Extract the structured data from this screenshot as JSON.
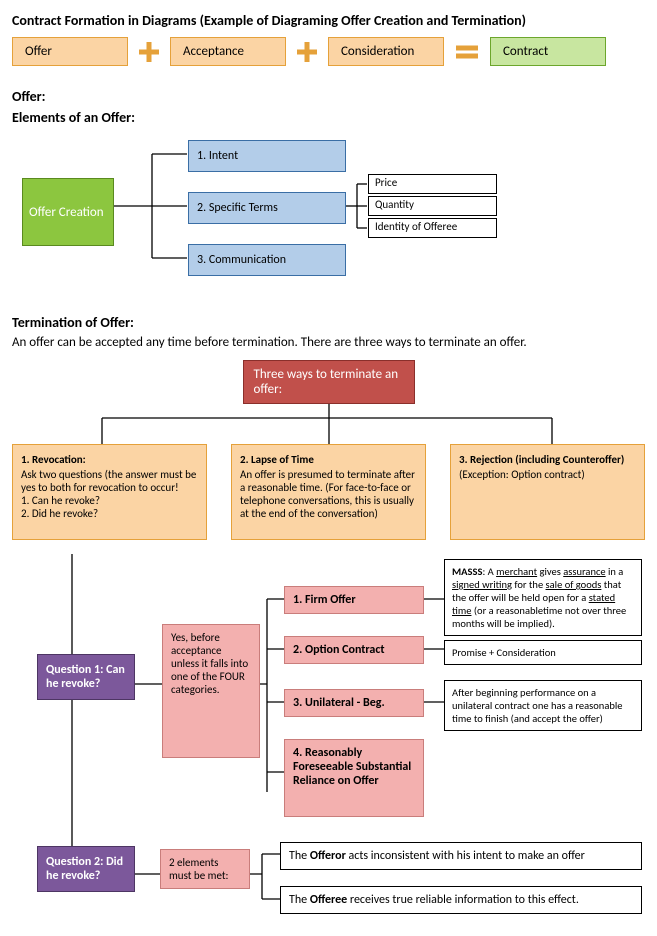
{
  "title": "Contract Formation  in Diagrams (Example of Diagraming Offer  Creation and Termination)",
  "colors": {
    "orange_bg": "#FBD4A4",
    "orange_border": "#E5A13A",
    "green_bg": "#C8E6A0",
    "green_border": "#6CA62C",
    "offer_green_bg": "#8CC63F",
    "blue_bg": "#B3CDE9",
    "blue_border": "#3a6ea5",
    "red_bg": "#C1504B",
    "purple_bg": "#7C589B",
    "pink_bg": "#F3B0AF",
    "plus_stroke": "#E5A13A",
    "equals_stroke": "#E5A13A"
  },
  "equation": {
    "a": "Offer",
    "b": "Acceptance",
    "c": "Consideration",
    "result": "Contract"
  },
  "offer_section": {
    "hdr": "Offer:",
    "sub": "Elements of an Offer:",
    "root": "Offer Creation",
    "elems": {
      "e1": "1. Intent",
      "e2": "2. Specific Terms",
      "e3": "3. Communication"
    },
    "terms": {
      "t1": "Price",
      "t2": "Quantity",
      "t3": "Identity of Offeree"
    }
  },
  "termination": {
    "hdr": "Termination of Offer:",
    "intro": "An offer can be accepted any time before termination. There are three ways to terminate an offer.",
    "box_title": "Three ways to terminate an offer:",
    "ways": {
      "w1": {
        "title": "1. Revocation:",
        "body": "Ask two questions (the answer must be yes to both for revocation to occur!\n1. Can he revoke?\n2. Did he revoke?"
      },
      "w2": {
        "title": "2.  Lapse of Time",
        "body": "An offer is presumed to terminate after a reasonable time. (For face-to-face or telephone conversations, this is usually at the end of the conversation)"
      },
      "w3": {
        "title": "3.  Rejection (including Counteroffer)",
        "body": "(Exception: Option contract)"
      }
    },
    "q1": "Question 1: Can he revoke?",
    "q1_ans": "Yes, before acceptance unless it falls into one of the FOUR categories.",
    "cats": {
      "c1": "1. Firm Offer",
      "c2": "2. Option Contract",
      "c3": "3. Unilateral - Beg.",
      "c4": "4. Reasonably Foreseeable Substantial Reliance on Offer"
    },
    "notes": {
      "n1_html": "<b>MASSS</b>: A <u>merchant</u> gives <u>assurance</u> in a <u>signed writing</u> for the <u>sale of goods</u> that the offer will be held open for a <u>stated time</u> (or a reasonabletime not over three months will be implied).",
      "n2": "Promise + Consideration",
      "n3": "After beginning performance on a unilateral contract one has a reasonable time to finish (and accept the offer)"
    },
    "q2": "Question 2:  Did he revoke?",
    "q2_ans": "2 elements must be met:",
    "q2_out": {
      "o1_html": "The <b>Offeror</b> acts inconsistent with his intent to make an offer",
      "o2_html": "The <b>Offeree</b> receives true reliable information to this effect."
    }
  }
}
